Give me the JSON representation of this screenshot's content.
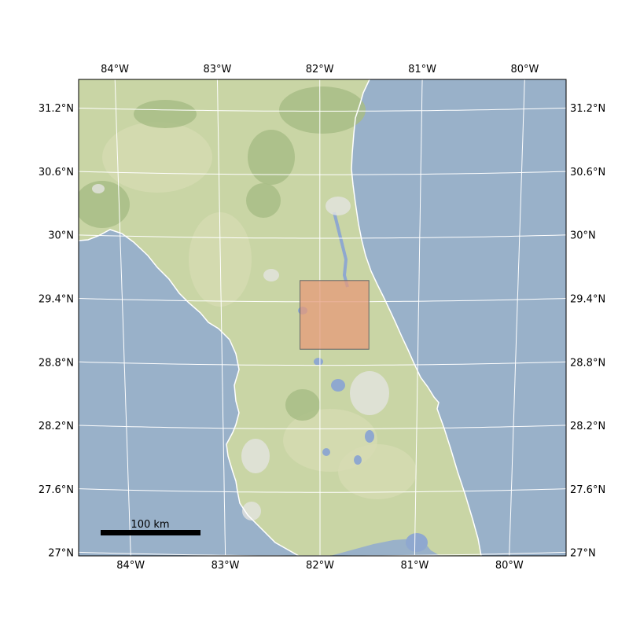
{
  "map": {
    "lon_range": [
      -84.45,
      -79.5
    ],
    "lat_range": [
      27.0,
      31.5
    ],
    "colors": {
      "ocean": "#99b1c9",
      "land": "#c9d5a5",
      "land_light": "#d7dcb3",
      "forest": "#a8bd86",
      "water": "#8fa8cf",
      "urban": "#e4e4e0",
      "grid": "#ffffff",
      "highlight_fill": "#e69a7a",
      "highlight_edge": "#666666"
    },
    "top_lon_ticks": [
      {
        "value": -84,
        "label": "84°W"
      },
      {
        "value": -83,
        "label": "83°W"
      },
      {
        "value": -82,
        "label": "82°W"
      },
      {
        "value": -81,
        "label": "81°W"
      },
      {
        "value": -80,
        "label": "80°W"
      }
    ],
    "bottom_lon_ticks": [
      {
        "value": -84,
        "label": "84°W"
      },
      {
        "value": -83,
        "label": "83°W"
      },
      {
        "value": -82,
        "label": "82°W"
      },
      {
        "value": -81,
        "label": "81°W"
      },
      {
        "value": -80,
        "label": "80°W"
      }
    ],
    "lat_ticks": [
      {
        "value": 31.2,
        "label": "31.2°N"
      },
      {
        "value": 30.6,
        "label": "30.6°N"
      },
      {
        "value": 30.0,
        "label": "30°N"
      },
      {
        "value": 29.4,
        "label": "29.4°N"
      },
      {
        "value": 28.8,
        "label": "28.8°N"
      },
      {
        "value": 28.2,
        "label": "28.2°N"
      },
      {
        "value": 27.6,
        "label": "27.6°N"
      },
      {
        "value": 27.0,
        "label": "27°N"
      }
    ],
    "highlight_region": {
      "lon_min": -82.2,
      "lon_max": -81.5,
      "lat_min": 28.95,
      "lat_max": 29.6
    },
    "scale_bar": {
      "label": "100 km",
      "length_km": 100
    }
  }
}
